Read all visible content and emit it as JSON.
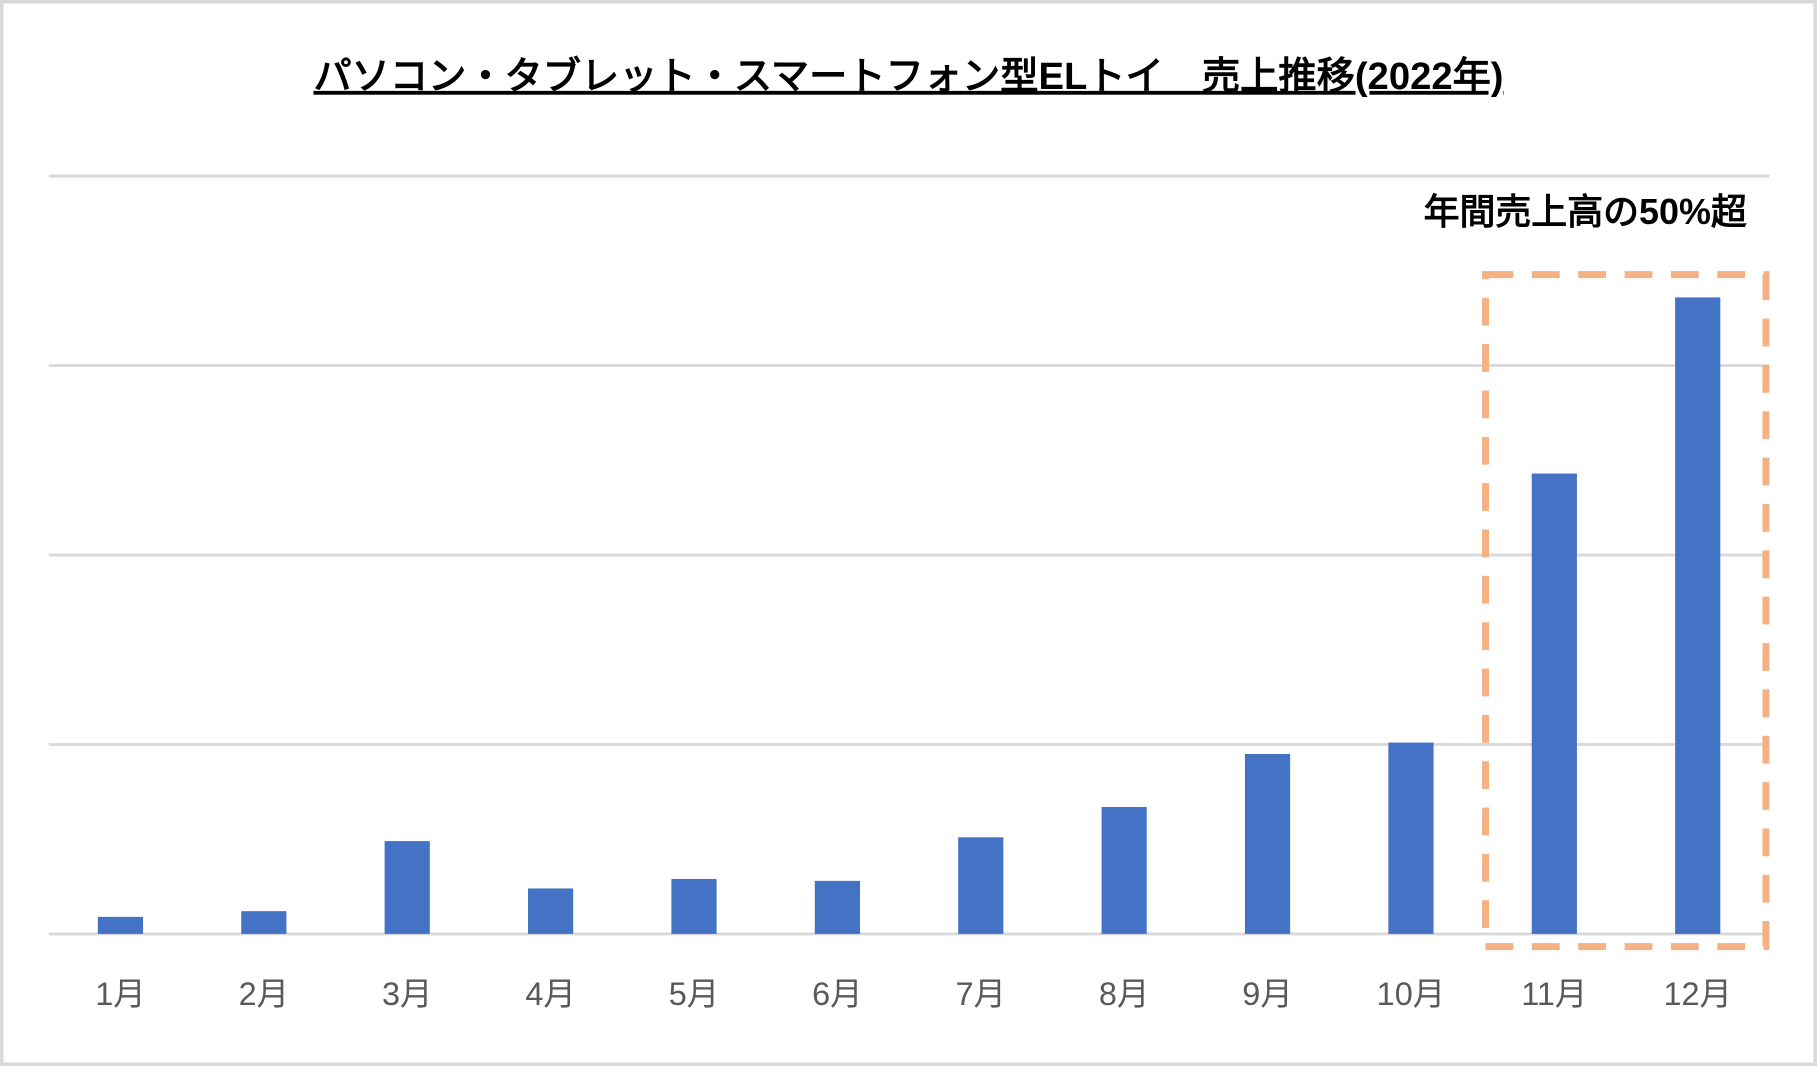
{
  "chart_data": {
    "type": "bar",
    "title": "パソコン・タブレット・スマートフォン型ELトイ　売上推移(2022年)",
    "annotation": "年間売上高の50%超",
    "categories": [
      "1月",
      "2月",
      "3月",
      "4月",
      "5月",
      "6月",
      "7月",
      "8月",
      "9月",
      "10月",
      "11月",
      "12月"
    ],
    "values": [
      0.09,
      0.12,
      0.49,
      0.24,
      0.29,
      0.28,
      0.51,
      0.67,
      0.95,
      1.01,
      2.43,
      3.36
    ],
    "color": "#4472c4",
    "ylim": [
      0,
      4
    ],
    "yticks": [
      0,
      1,
      2,
      3,
      4
    ],
    "grid": true
  }
}
